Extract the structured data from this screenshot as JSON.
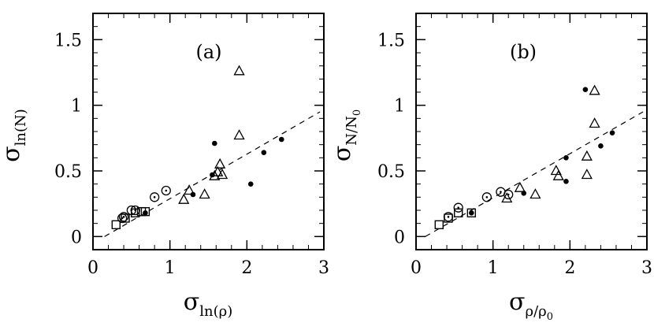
{
  "chart_data": [
    {
      "type": "scatter",
      "panel_label": "(a)",
      "xlim": [
        0,
        3
      ],
      "ylim": [
        -0.1,
        1.7
      ],
      "xticks": [
        "0",
        "1",
        "2",
        "3"
      ],
      "yticks": [
        "0",
        "0.5",
        "1",
        "1.5"
      ],
      "xlabel": {
        "sym": "σ",
        "sub": "ln(ρ)"
      },
      "ylabel": {
        "sym": "σ",
        "sub": "ln(N)"
      },
      "fit_line": [
        [
          0.15,
          0.0
        ],
        [
          2.95,
          0.95
        ]
      ],
      "series": [
        {
          "marker": "square",
          "points": [
            [
              0.3,
              0.09
            ],
            [
              0.42,
              0.14
            ],
            [
              0.55,
              0.18
            ],
            [
              0.63,
              0.19
            ],
            [
              0.68,
              0.19
            ]
          ]
        },
        {
          "marker": "circle-dot",
          "points": [
            [
              0.38,
              0.14
            ],
            [
              0.4,
              0.15
            ],
            [
              0.5,
              0.2
            ],
            [
              0.55,
              0.2
            ],
            [
              0.8,
              0.3
            ],
            [
              0.95,
              0.35
            ]
          ]
        },
        {
          "marker": "triangle",
          "points": [
            [
              1.18,
              0.28
            ],
            [
              1.25,
              0.35
            ],
            [
              1.45,
              0.32
            ],
            [
              1.58,
              0.46
            ],
            [
              1.62,
              0.49
            ],
            [
              1.65,
              0.55
            ],
            [
              1.68,
              0.47
            ],
            [
              1.9,
              0.77
            ],
            [
              1.9,
              1.26
            ]
          ]
        },
        {
          "marker": "dot",
          "points": [
            [
              0.68,
              0.18
            ],
            [
              1.3,
              0.32
            ],
            [
              1.55,
              0.47
            ],
            [
              1.58,
              0.71
            ],
            [
              2.05,
              0.4
            ],
            [
              2.22,
              0.64
            ],
            [
              2.45,
              0.74
            ]
          ]
        }
      ]
    },
    {
      "type": "scatter",
      "panel_label": "(b)",
      "xlim": [
        0,
        3
      ],
      "ylim": [
        -0.1,
        1.7
      ],
      "xticks": [
        "0",
        "1",
        "2",
        "3"
      ],
      "yticks": [
        "0",
        "0.5",
        "1",
        "1.5"
      ],
      "xlabel": {
        "sym": "σ",
        "sub": "ρ/ρ",
        "subsub": "0"
      },
      "ylabel": {
        "sym": "σ",
        "sub": "N/N",
        "subsub": "0"
      },
      "fit_line": [
        [
          0.12,
          0.0
        ],
        [
          2.95,
          0.95
        ]
      ],
      "series": [
        {
          "marker": "square",
          "points": [
            [
              0.3,
              0.09
            ],
            [
              0.42,
              0.14
            ],
            [
              0.55,
              0.18
            ],
            [
              0.72,
              0.18
            ]
          ]
        },
        {
          "marker": "circle-dot",
          "points": [
            [
              0.42,
              0.15
            ],
            [
              0.55,
              0.22
            ],
            [
              0.92,
              0.3
            ],
            [
              1.1,
              0.34
            ],
            [
              1.2,
              0.32
            ]
          ]
        },
        {
          "marker": "triangle",
          "points": [
            [
              1.18,
              0.29
            ],
            [
              1.35,
              0.37
            ],
            [
              1.55,
              0.32
            ],
            [
              1.82,
              0.5
            ],
            [
              1.85,
              0.46
            ],
            [
              2.22,
              0.47
            ],
            [
              2.22,
              0.61
            ],
            [
              2.32,
              0.86
            ],
            [
              2.32,
              1.11
            ]
          ]
        },
        {
          "marker": "dot",
          "points": [
            [
              0.72,
              0.18
            ],
            [
              1.4,
              0.33
            ],
            [
              1.95,
              0.42
            ],
            [
              1.95,
              0.6
            ],
            [
              2.2,
              1.12
            ],
            [
              2.4,
              0.69
            ],
            [
              2.55,
              0.79
            ]
          ]
        }
      ]
    }
  ]
}
